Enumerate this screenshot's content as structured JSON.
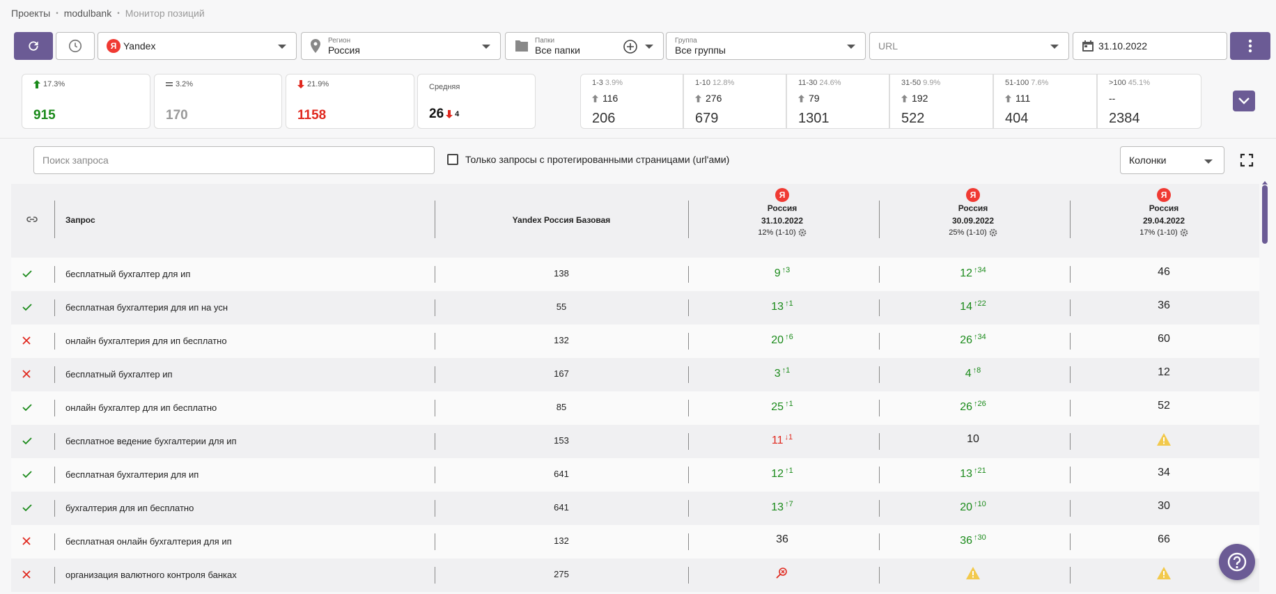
{
  "breadcrumb": [
    "Проекты",
    "modulbank",
    "Монитор позиций"
  ],
  "toolbar": {
    "engine": "Yandex",
    "engine_badge": "Я",
    "region_label": "Регион",
    "region_value": "Россия",
    "folders_label": "Папки",
    "folders_value": "Все папки",
    "group_label": "Группа",
    "group_value": "Все группы",
    "url_placeholder": "URL",
    "date": "31.10.2022"
  },
  "summary": [
    {
      "pct": "17.3%",
      "value": "915",
      "trend": "up"
    },
    {
      "pct": "3.2%",
      "value": "170",
      "trend": "same"
    },
    {
      "pct": "21.9%",
      "value": "1158",
      "trend": "down"
    },
    {
      "label": "Средняя",
      "value": "26",
      "delta": "4",
      "trend": "down"
    }
  ],
  "ranges": [
    {
      "range": "1-3",
      "pct": "3.9%",
      "up": "116",
      "total": "206"
    },
    {
      "range": "1-10",
      "pct": "12.8%",
      "up": "276",
      "total": "679"
    },
    {
      "range": "11-30",
      "pct": "24.6%",
      "up": "79",
      "total": "1301"
    },
    {
      "range": "31-50",
      "pct": "9.9%",
      "up": "192",
      "total": "522"
    },
    {
      "range": "51-100",
      "pct": "7.6%",
      "up": "111",
      "total": "404"
    },
    {
      "range": ">100",
      "pct": "45.1%",
      "up": "--",
      "total": "2384"
    }
  ],
  "filters": {
    "search_placeholder": "Поиск запроса",
    "tagged_only_label": "Только запросы с протегированными страницами (url'ами)",
    "columns_label": "Колонки"
  },
  "table": {
    "col_query": "Запрос",
    "col_base": "Yandex Россия Базовая",
    "date_cols": [
      {
        "badge": "Я",
        "region": "Россия",
        "date": "31.10.2022",
        "pct": "12% (1-10)"
      },
      {
        "badge": "Я",
        "region": "Россия",
        "date": "30.09.2022",
        "pct": "25% (1-10)"
      },
      {
        "badge": "Я",
        "region": "Россия",
        "date": "29.04.2022",
        "pct": "17% (1-10)"
      }
    ],
    "rows": [
      {
        "status": "ok",
        "query": "бесплатный бухгалтер для ип",
        "base": "138",
        "c1": "9",
        "c1d": "3",
        "c1t": "up",
        "c2": "12",
        "c2d": "34",
        "c2t": "up",
        "c3": "46",
        "c3t": "none"
      },
      {
        "status": "ok",
        "query": "бесплатная бухгалтерия для ип на усн",
        "base": "55",
        "c1": "13",
        "c1d": "1",
        "c1t": "up",
        "c2": "14",
        "c2d": "22",
        "c2t": "up",
        "c3": "36",
        "c3t": "none"
      },
      {
        "status": "no",
        "query": "онлайн бухгалтерия для ип бесплатно",
        "base": "132",
        "c1": "20",
        "c1d": "6",
        "c1t": "up",
        "c2": "26",
        "c2d": "34",
        "c2t": "up",
        "c3": "60",
        "c3t": "none"
      },
      {
        "status": "no",
        "query": "бесплатный бухгалтер ип",
        "base": "167",
        "c1": "3",
        "c1d": "1",
        "c1t": "up",
        "c2": "4",
        "c2d": "8",
        "c2t": "up",
        "c3": "12",
        "c3t": "none"
      },
      {
        "status": "ok",
        "query": "онлайн бухгалтер для ип бесплатно",
        "base": "85",
        "c1": "25",
        "c1d": "1",
        "c1t": "up",
        "c2": "26",
        "c2d": "26",
        "c2t": "up",
        "c3": "52",
        "c3t": "none"
      },
      {
        "status": "ok",
        "query": "бесплатное ведение бухгалтерии для ип",
        "base": "153",
        "c1": "11",
        "c1d": "1",
        "c1t": "down",
        "c2": "10",
        "c2d": "",
        "c2t": "none",
        "c3": "",
        "c3t": "warn"
      },
      {
        "status": "ok",
        "query": "бесплатная бухгалтерия для ип",
        "base": "641",
        "c1": "12",
        "c1d": "1",
        "c1t": "up",
        "c2": "13",
        "c2d": "21",
        "c2t": "up",
        "c3": "34",
        "c3t": "none"
      },
      {
        "status": "ok",
        "query": "бухгалтерия для ип бесплатно",
        "base": "641",
        "c1": "13",
        "c1d": "7",
        "c1t": "up",
        "c2": "20",
        "c2d": "10",
        "c2t": "up",
        "c3": "30",
        "c3t": "none"
      },
      {
        "status": "no",
        "query": "бесплатная онлайн бухгалтерия для ип",
        "base": "132",
        "c1": "36",
        "c1d": "",
        "c1t": "none",
        "c2": "36",
        "c2d": "30",
        "c2t": "up",
        "c3": "66",
        "c3t": "none"
      },
      {
        "status": "no",
        "query": "организация валютного контроля банках",
        "base": "275",
        "c1": "",
        "c1d": "",
        "c1t": "notfound",
        "c2": "",
        "c2d": "",
        "c2t": "warn",
        "c3": "",
        "c3t": "warn"
      }
    ]
  },
  "colors": {
    "accent": "#6b5b95",
    "up": "#1a8a1a",
    "down": "#e0281e",
    "neutral": "#999999",
    "warn": "#f2c94c"
  }
}
